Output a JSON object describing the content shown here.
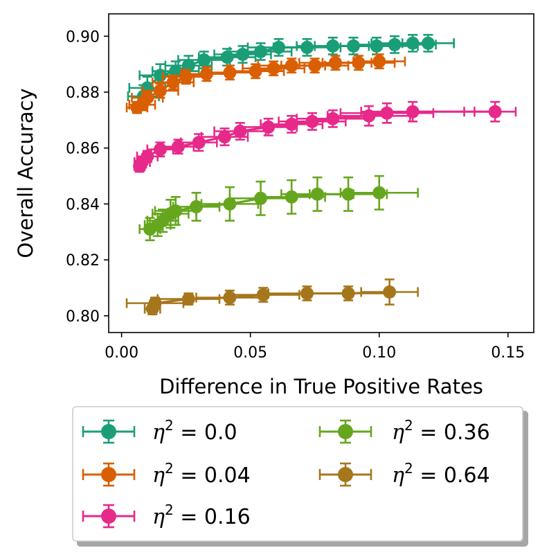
{
  "chart_data": {
    "type": "scatter",
    "title": "",
    "xlabel": "Difference in True Positive Rates",
    "ylabel": "Overall Accuracy",
    "xlim": [
      -0.005,
      0.16
    ],
    "ylim": [
      0.794,
      0.908
    ],
    "xticks": [
      0.0,
      0.05,
      0.1,
      0.15
    ],
    "xtick_labels": [
      "0.00",
      "0.05",
      "0.10",
      "0.15"
    ],
    "yticks": [
      0.8,
      0.82,
      0.84,
      0.86,
      0.88,
      0.9
    ],
    "ytick_labels": [
      "0.80",
      "0.82",
      "0.84",
      "0.86",
      "0.88",
      "0.90"
    ],
    "legend": {
      "placement": "below",
      "columns": 2,
      "labels": [
        "η² = 0.0",
        "η² = 0.04",
        "η² = 0.16",
        "η² = 0.36",
        "η² = 0.64"
      ]
    },
    "series": [
      {
        "name": "η² = 0.0",
        "prefix": "η",
        "sup": "2",
        "suffix": " = 0.0",
        "color": "#1b9e77",
        "points": [
          {
            "x": 0.0085,
            "y": 0.8785,
            "xerr": 0.006,
            "yerr": 0.004
          },
          {
            "x": 0.01,
            "y": 0.8815,
            "xerr": 0.007,
            "yerr": 0.004
          },
          {
            "x": 0.015,
            "y": 0.886,
            "xerr": 0.008,
            "yerr": 0.004
          },
          {
            "x": 0.021,
            "y": 0.8875,
            "xerr": 0.009,
            "yerr": 0.0035
          },
          {
            "x": 0.026,
            "y": 0.8895,
            "xerr": 0.009,
            "yerr": 0.0035
          },
          {
            "x": 0.032,
            "y": 0.8915,
            "xerr": 0.01,
            "yerr": 0.003
          },
          {
            "x": 0.041,
            "y": 0.8925,
            "xerr": 0.011,
            "yerr": 0.003
          },
          {
            "x": 0.047,
            "y": 0.8935,
            "xerr": 0.011,
            "yerr": 0.003
          },
          {
            "x": 0.054,
            "y": 0.8945,
            "xerr": 0.012,
            "yerr": 0.003
          },
          {
            "x": 0.061,
            "y": 0.896,
            "xerr": 0.012,
            "yerr": 0.003
          },
          {
            "x": 0.072,
            "y": 0.896,
            "xerr": 0.013,
            "yerr": 0.003
          },
          {
            "x": 0.082,
            "y": 0.8965,
            "xerr": 0.014,
            "yerr": 0.003
          },
          {
            "x": 0.09,
            "y": 0.8965,
            "xerr": 0.015,
            "yerr": 0.003
          },
          {
            "x": 0.099,
            "y": 0.8965,
            "xerr": 0.016,
            "yerr": 0.003
          },
          {
            "x": 0.106,
            "y": 0.897,
            "xerr": 0.016,
            "yerr": 0.003
          },
          {
            "x": 0.113,
            "y": 0.8975,
            "xerr": 0.016,
            "yerr": 0.003
          },
          {
            "x": 0.119,
            "y": 0.8975,
            "xerr": 0.01,
            "yerr": 0.003
          }
        ]
      },
      {
        "name": "η² = 0.04",
        "prefix": "η",
        "sup": "2",
        "suffix": " = 0.04",
        "color": "#d95f02",
        "points": [
          {
            "x": 0.006,
            "y": 0.8745,
            "xerr": 0.004,
            "yerr": 0.002
          },
          {
            "x": 0.008,
            "y": 0.8755,
            "xerr": 0.005,
            "yerr": 0.002
          },
          {
            "x": 0.01,
            "y": 0.878,
            "xerr": 0.006,
            "yerr": 0.0025
          },
          {
            "x": 0.015,
            "y": 0.8805,
            "xerr": 0.007,
            "yerr": 0.0025
          },
          {
            "x": 0.02,
            "y": 0.8835,
            "xerr": 0.008,
            "yerr": 0.0025
          },
          {
            "x": 0.025,
            "y": 0.8855,
            "xerr": 0.009,
            "yerr": 0.0025
          },
          {
            "x": 0.033,
            "y": 0.8865,
            "xerr": 0.01,
            "yerr": 0.0025
          },
          {
            "x": 0.042,
            "y": 0.887,
            "xerr": 0.01,
            "yerr": 0.0025
          },
          {
            "x": 0.052,
            "y": 0.8875,
            "xerr": 0.011,
            "yerr": 0.0025
          },
          {
            "x": 0.059,
            "y": 0.8885,
            "xerr": 0.012,
            "yerr": 0.0025
          },
          {
            "x": 0.066,
            "y": 0.8895,
            "xerr": 0.013,
            "yerr": 0.0025
          },
          {
            "x": 0.075,
            "y": 0.8895,
            "xerr": 0.013,
            "yerr": 0.0025
          },
          {
            "x": 0.083,
            "y": 0.8905,
            "xerr": 0.014,
            "yerr": 0.0025
          },
          {
            "x": 0.092,
            "y": 0.8905,
            "xerr": 0.014,
            "yerr": 0.0025
          },
          {
            "x": 0.1,
            "y": 0.891,
            "xerr": 0.01,
            "yerr": 0.0025
          }
        ]
      },
      {
        "name": "η² = 0.16",
        "prefix": "η",
        "sup": "2",
        "suffix": " = 0.16",
        "color": "#e7298a",
        "points": [
          {
            "x": 0.007,
            "y": 0.8535,
            "xerr": 0.002,
            "yerr": 0.002
          },
          {
            "x": 0.008,
            "y": 0.855,
            "xerr": 0.003,
            "yerr": 0.002
          },
          {
            "x": 0.01,
            "y": 0.857,
            "xerr": 0.004,
            "yerr": 0.002
          },
          {
            "x": 0.015,
            "y": 0.8595,
            "xerr": 0.005,
            "yerr": 0.0025
          },
          {
            "x": 0.022,
            "y": 0.8605,
            "xerr": 0.006,
            "yerr": 0.0025
          },
          {
            "x": 0.03,
            "y": 0.862,
            "xerr": 0.007,
            "yerr": 0.003
          },
          {
            "x": 0.04,
            "y": 0.864,
            "xerr": 0.009,
            "yerr": 0.003
          },
          {
            "x": 0.046,
            "y": 0.866,
            "xerr": 0.01,
            "yerr": 0.003
          },
          {
            "x": 0.057,
            "y": 0.8675,
            "xerr": 0.011,
            "yerr": 0.003
          },
          {
            "x": 0.066,
            "y": 0.8685,
            "xerr": 0.012,
            "yerr": 0.003
          },
          {
            "x": 0.074,
            "y": 0.8695,
            "xerr": 0.013,
            "yerr": 0.003
          },
          {
            "x": 0.082,
            "y": 0.8705,
            "xerr": 0.014,
            "yerr": 0.003
          },
          {
            "x": 0.096,
            "y": 0.8715,
            "xerr": 0.016,
            "yerr": 0.0035
          },
          {
            "x": 0.103,
            "y": 0.8725,
            "xerr": 0.018,
            "yerr": 0.0035
          },
          {
            "x": 0.113,
            "y": 0.873,
            "xerr": 0.02,
            "yerr": 0.0035
          },
          {
            "x": 0.145,
            "y": 0.873,
            "xerr": 0.008,
            "yerr": 0.0035
          }
        ]
      },
      {
        "name": "η² = 0.36",
        "prefix": "η",
        "sup": "2",
        "suffix": " = 0.36",
        "color": "#66a61e",
        "points": [
          {
            "x": 0.011,
            "y": 0.831,
            "xerr": 0.004,
            "yerr": 0.004
          },
          {
            "x": 0.014,
            "y": 0.8325,
            "xerr": 0.005,
            "yerr": 0.004
          },
          {
            "x": 0.016,
            "y": 0.834,
            "xerr": 0.006,
            "yerr": 0.004
          },
          {
            "x": 0.019,
            "y": 0.8365,
            "xerr": 0.007,
            "yerr": 0.005
          },
          {
            "x": 0.021,
            "y": 0.8375,
            "xerr": 0.008,
            "yerr": 0.005
          },
          {
            "x": 0.029,
            "y": 0.839,
            "xerr": 0.009,
            "yerr": 0.005
          },
          {
            "x": 0.042,
            "y": 0.84,
            "xerr": 0.011,
            "yerr": 0.006
          },
          {
            "x": 0.054,
            "y": 0.842,
            "xerr": 0.012,
            "yerr": 0.006
          },
          {
            "x": 0.066,
            "y": 0.8425,
            "xerr": 0.013,
            "yerr": 0.006
          },
          {
            "x": 0.076,
            "y": 0.8435,
            "xerr": 0.014,
            "yerr": 0.006
          },
          {
            "x": 0.088,
            "y": 0.8435,
            "xerr": 0.015,
            "yerr": 0.006
          },
          {
            "x": 0.1,
            "y": 0.844,
            "xerr": 0.015,
            "yerr": 0.006
          }
        ]
      },
      {
        "name": "η² = 0.64",
        "prefix": "η",
        "sup": "2",
        "suffix": " = 0.64",
        "color": "#a6761d",
        "points": [
          {
            "x": 0.012,
            "y": 0.8025,
            "xerr": 0.003,
            "yerr": 0.002
          },
          {
            "x": 0.013,
            "y": 0.8045,
            "xerr": 0.011,
            "yerr": 0.002
          },
          {
            "x": 0.026,
            "y": 0.806,
            "xerr": 0.012,
            "yerr": 0.002
          },
          {
            "x": 0.042,
            "y": 0.8065,
            "xerr": 0.013,
            "yerr": 0.0025
          },
          {
            "x": 0.055,
            "y": 0.8075,
            "xerr": 0.014,
            "yerr": 0.0025
          },
          {
            "x": 0.072,
            "y": 0.808,
            "xerr": 0.015,
            "yerr": 0.0025
          },
          {
            "x": 0.088,
            "y": 0.808,
            "xerr": 0.016,
            "yerr": 0.0025
          },
          {
            "x": 0.104,
            "y": 0.8085,
            "xerr": 0.011,
            "yerr": 0.0045
          }
        ]
      }
    ]
  }
}
